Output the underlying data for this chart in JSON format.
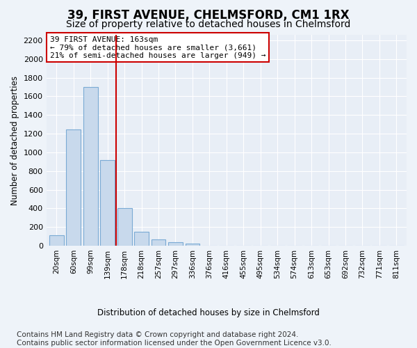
{
  "title": "39, FIRST AVENUE, CHELMSFORD, CM1 1RX",
  "subtitle": "Size of property relative to detached houses in Chelmsford",
  "xlabel_bottom": "Distribution of detached houses by size in Chelmsford",
  "ylabel": "Number of detached properties",
  "categories": [
    "20sqm",
    "60sqm",
    "99sqm",
    "139sqm",
    "178sqm",
    "218sqm",
    "257sqm",
    "297sqm",
    "336sqm",
    "376sqm",
    "416sqm",
    "455sqm",
    "495sqm",
    "534sqm",
    "574sqm",
    "613sqm",
    "653sqm",
    "692sqm",
    "732sqm",
    "771sqm",
    "811sqm"
  ],
  "values": [
    110,
    1245,
    1700,
    920,
    400,
    150,
    65,
    35,
    22,
    0,
    0,
    0,
    0,
    0,
    0,
    0,
    0,
    0,
    0,
    0,
    0
  ],
  "bar_color": "#c8d9ec",
  "bar_edge_color": "#7aaad4",
  "vline_x": 3.5,
  "vline_color": "#cc0000",
  "annotation_line1": "39 FIRST AVENUE: 163sqm",
  "annotation_line2": "← 79% of detached houses are smaller (3,661)",
  "annotation_line3": "21% of semi-detached houses are larger (949) →",
  "annotation_box_color": "#ffffff",
  "annotation_box_edge": "#cc0000",
  "ylim": [
    0,
    2260
  ],
  "yticks": [
    0,
    200,
    400,
    600,
    800,
    1000,
    1200,
    1400,
    1600,
    1800,
    2000,
    2200
  ],
  "bg_color": "#eef3f9",
  "plot_bg_color": "#e8eef6",
  "grid_color": "#ffffff",
  "footer": "Contains HM Land Registry data © Crown copyright and database right 2024.\nContains public sector information licensed under the Open Government Licence v3.0.",
  "title_fontsize": 12,
  "subtitle_fontsize": 10,
  "footer_fontsize": 7.5
}
